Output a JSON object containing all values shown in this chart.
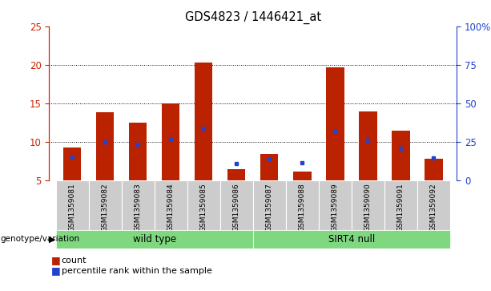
{
  "title": "GDS4823 / 1446421_at",
  "samples": [
    "GSM1359081",
    "GSM1359082",
    "GSM1359083",
    "GSM1359084",
    "GSM1359085",
    "GSM1359086",
    "GSM1359087",
    "GSM1359088",
    "GSM1359089",
    "GSM1359090",
    "GSM1359091",
    "GSM1359092"
  ],
  "counts": [
    9.3,
    13.8,
    12.5,
    15.0,
    20.3,
    6.5,
    8.4,
    6.2,
    19.7,
    13.9,
    11.5,
    7.8
  ],
  "percentile_rank": [
    8.0,
    10.0,
    9.7,
    10.3,
    11.8,
    7.2,
    7.8,
    7.3,
    11.5,
    10.2,
    9.2,
    7.9
  ],
  "groups": [
    {
      "label": "wild type",
      "start": 0,
      "end": 5,
      "color": "#7FD87F"
    },
    {
      "label": "SIRT4 null",
      "start": 6,
      "end": 11,
      "color": "#7FD87F"
    }
  ],
  "ymin": 5,
  "ymax": 25,
  "yticks_left": [
    5,
    10,
    15,
    20,
    25
  ],
  "yticks_right": [
    0,
    25,
    50,
    75,
    100
  ],
  "bar_color": "#bb2200",
  "marker_color": "#2244cc",
  "bg_color_plot": "#ffffff",
  "xaxis_bg": "#cccccc",
  "left_tick_color": "#cc2200",
  "right_tick_color": "#2244cc",
  "legend_items": [
    "count",
    "percentile rank within the sample"
  ],
  "annotation_label": "genotype/variation",
  "grid_color": "black",
  "grid_linewidth": 0.7
}
